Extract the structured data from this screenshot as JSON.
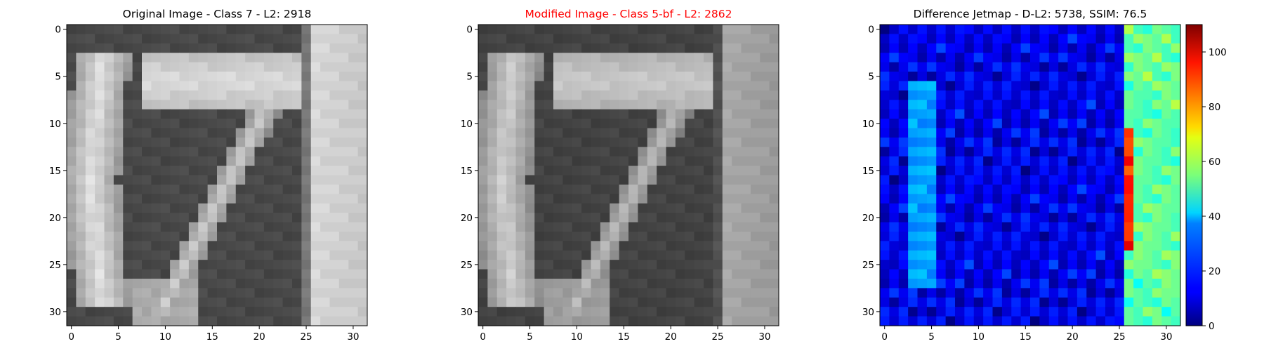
{
  "figure": {
    "panels": [
      {
        "id": "original",
        "title": "Original Image - Class 7 - L2: 2918",
        "title_color": "#000000"
      },
      {
        "id": "modified",
        "title": "Modified Image - Class 5-bf - L2: 2862",
        "title_color": "#ff0000"
      },
      {
        "id": "diff",
        "title": "Difference Jetmap - D-L2: 5738, SSIM: 76.5",
        "title_color": "#000000"
      }
    ],
    "x_ticks": [
      "0",
      "5",
      "10",
      "15",
      "20",
      "25",
      "30"
    ],
    "y_ticks": [
      "0",
      "5",
      "10",
      "15",
      "20",
      "25",
      "30"
    ],
    "colorbar_ticks": [
      "0",
      "20",
      "40",
      "60",
      "80",
      "100"
    ],
    "colormap": "jet",
    "image_colormap": "gray"
  },
  "chart_data": [
    {
      "type": "heatmap",
      "title": "Original Image - Class 7 - L2: 2918",
      "xlim": [
        -0.5,
        31.5
      ],
      "ylim": [
        31.5,
        -0.5
      ],
      "x_ticks": [
        0,
        5,
        10,
        15,
        20,
        25,
        30
      ],
      "y_ticks": [
        0,
        5,
        10,
        15,
        20,
        25,
        30
      ],
      "shape": [
        32,
        32
      ],
      "colormap": "gray"
    },
    {
      "type": "heatmap",
      "title": "Modified Image - Class 5-bf - L2: 2862",
      "xlim": [
        -0.5,
        31.5
      ],
      "ylim": [
        31.5,
        -0.5
      ],
      "x_ticks": [
        0,
        5,
        10,
        15,
        20,
        25,
        30
      ],
      "y_ticks": [
        0,
        5,
        10,
        15,
        20,
        25,
        30
      ],
      "shape": [
        32,
        32
      ],
      "colormap": "gray"
    },
    {
      "type": "heatmap",
      "title": "Difference Jetmap - D-L2: 5738, SSIM: 76.5",
      "xlim": [
        -0.5,
        31.5
      ],
      "ylim": [
        31.5,
        -0.5
      ],
      "x_ticks": [
        0,
        5,
        10,
        15,
        20,
        25,
        30
      ],
      "y_ticks": [
        0,
        5,
        10,
        15,
        20,
        25,
        30
      ],
      "shape": [
        32,
        32
      ],
      "colormap": "jet",
      "colorbar": {
        "range": [
          0,
          110
        ],
        "ticks": [
          0,
          20,
          40,
          60,
          80,
          100
        ]
      }
    }
  ]
}
